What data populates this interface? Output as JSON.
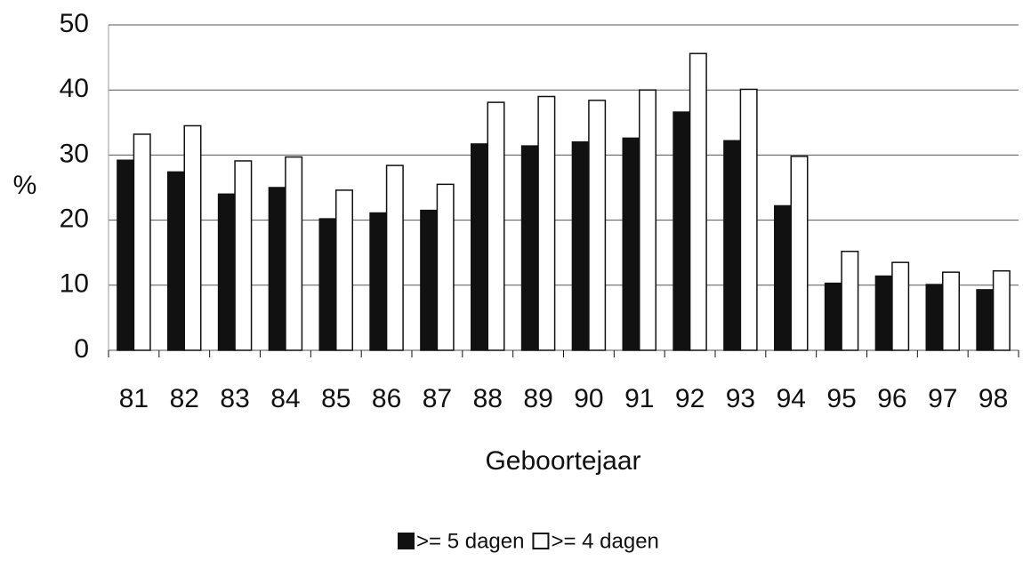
{
  "chart_data": {
    "type": "bar",
    "y_label": "%",
    "x_label": "Geboortejaar",
    "categories": [
      "81",
      "82",
      "83",
      "84",
      "85",
      "86",
      "87",
      "88",
      "89",
      "90",
      "91",
      "92",
      "93",
      "94",
      "95",
      "96",
      "97",
      "98"
    ],
    "series": [
      {
        "name": ">= 5 dagen",
        "color": "#111111",
        "values": [
          29.2,
          27.4,
          24.0,
          25.0,
          20.2,
          21.1,
          21.5,
          31.7,
          31.4,
          32.0,
          32.6,
          36.6,
          32.2,
          22.2,
          10.3,
          11.4,
          10.1,
          9.3
        ]
      },
      {
        "name": ">= 4 dagen",
        "color": "#ffffff",
        "values": [
          33.2,
          34.5,
          29.1,
          29.7,
          24.6,
          28.4,
          25.5,
          38.1,
          39.0,
          38.4,
          40.0,
          45.6,
          40.1,
          29.8,
          15.2,
          13.5,
          12.0,
          12.2
        ]
      }
    ],
    "ylim": [
      0,
      50
    ],
    "yticks": [
      0,
      10,
      20,
      30,
      40,
      50
    ],
    "grid": true,
    "legend": "bottom"
  }
}
